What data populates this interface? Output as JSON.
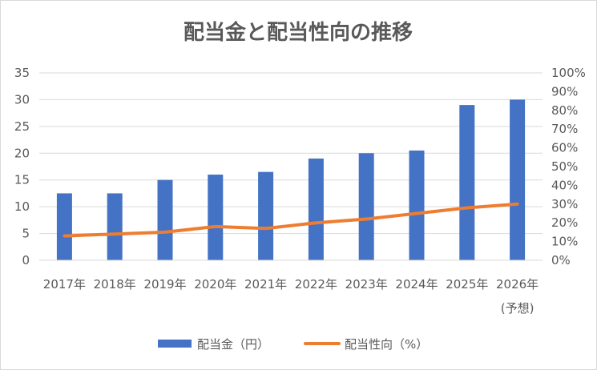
{
  "chart_data": {
    "type": "bar",
    "title": "配当金と配当性向の推移",
    "categories": [
      "2017年",
      "2018年",
      "2019年",
      "2020年",
      "2021年",
      "2022年",
      "2023年",
      "2024年",
      "2025年",
      "2026年"
    ],
    "category_notes": [
      "",
      "",
      "",
      "",
      "",
      "",
      "",
      "",
      "",
      "(予想)"
    ],
    "series": [
      {
        "name": "配当金（円）",
        "type": "bar",
        "axis": "left",
        "color": "#4472c4",
        "values": [
          12.5,
          12.5,
          15,
          16,
          16.5,
          19,
          20,
          20.5,
          29,
          30
        ]
      },
      {
        "name": "配当性向（%）",
        "type": "line",
        "axis": "right",
        "color": "#ed7d31",
        "values": [
          13,
          14,
          15,
          18,
          17,
          20,
          22,
          25,
          28,
          30
        ]
      }
    ],
    "y_left": {
      "ylim": [
        0,
        35
      ],
      "ticks": [
        "0",
        "5",
        "10",
        "15",
        "20",
        "25",
        "30",
        "35"
      ]
    },
    "y_right": {
      "ylim": [
        0,
        100
      ],
      "ticks": [
        "0%",
        "10%",
        "20%",
        "30%",
        "40%",
        "50%",
        "60%",
        "70%",
        "80%",
        "90%",
        "100%"
      ]
    },
    "grid": true,
    "legend_position": "bottom"
  }
}
